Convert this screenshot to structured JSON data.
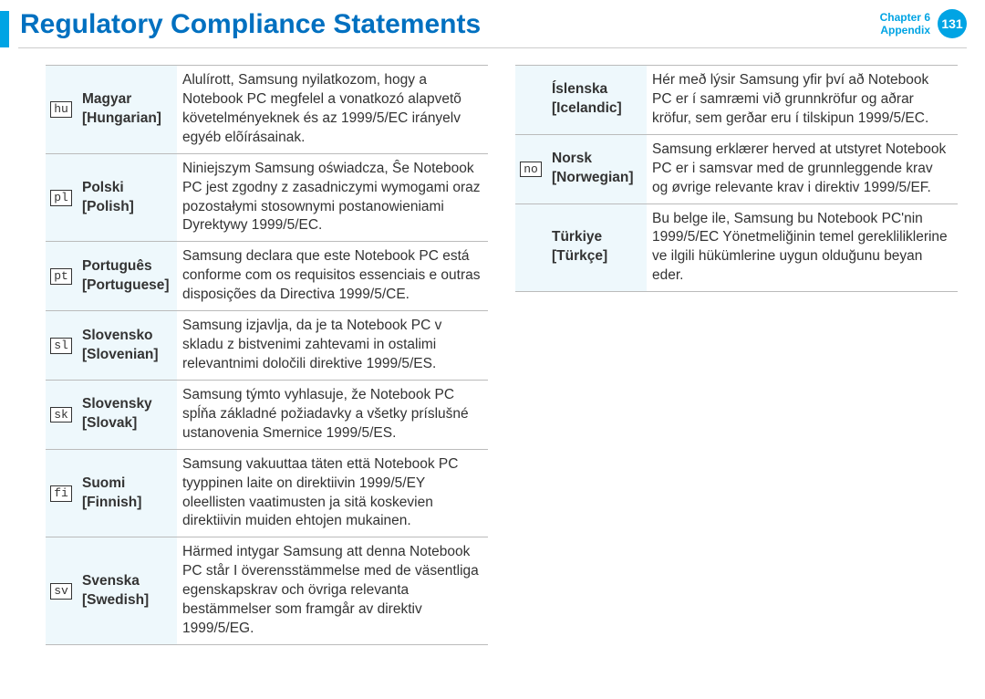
{
  "header": {
    "title": "Regulatory Compliance Statements",
    "chapter_line": "Chapter 6",
    "appendix_line": "Appendix",
    "page_number": "131"
  },
  "colors": {
    "accent": "#00a4e4",
    "title": "#0070c0",
    "lang_bg": "#eef8fc",
    "border": "#bbbbbb"
  },
  "left_rows": [
    {
      "code": "hu",
      "lang_native": "Magyar",
      "lang_en": "[Hungarian]",
      "statement": "Alulírott, Samsung nyilatkozom, hogy a Notebook PC megfelel a vonatkozó alapvetõ követelményeknek és az 1999/5/EC irányelv egyéb elõírásainak."
    },
    {
      "code": "pl",
      "lang_native": "Polski",
      "lang_en": "[Polish]",
      "statement": "Niniejszym Samsung oświadcza, Ŝe Notebook PC jest zgodny z zasadniczymi wymogami oraz pozostałymi stosownymi postanowieniami Dyrektywy 1999/5/EC."
    },
    {
      "code": "pt",
      "lang_native": "Português",
      "lang_en": "[Portuguese]",
      "statement": "Samsung declara que este Notebook PC está conforme com os requisitos essenciais e outras disposições da Directiva 1999/5/CE."
    },
    {
      "code": "sl",
      "lang_native": "Slovensko",
      "lang_en": "[Slovenian]",
      "statement": "Samsung izjavlja, da je ta Notebook PC v skladu z bistvenimi zahtevami in ostalimi relevantnimi določili direktive 1999/5/ES."
    },
    {
      "code": "sk",
      "lang_native": "Slovensky",
      "lang_en": "[Slovak]",
      "statement": "Samsung týmto vyhlasuje, že Notebook PC spĺňa základné požiadavky a všetky príslušné ustanovenia Smernice 1999/5/ES."
    },
    {
      "code": "fi",
      "lang_native": "Suomi",
      "lang_en": "[Finnish]",
      "statement": "Samsung vakuuttaa täten että Notebook PC tyyppinen laite on direktiivin 1999/5/EY oleellisten vaatimusten ja sitä koskevien direktiivin muiden ehtojen mukainen."
    },
    {
      "code": "sv",
      "lang_native": "Svenska",
      "lang_en": "[Swedish]",
      "statement": "Härmed intygar Samsung att denna Notebook PC står I överensstämmelse med de väsentliga egenskapskrav och övriga relevanta bestämmelser som framgår av direktiv 1999/5/EG."
    }
  ],
  "right_rows": [
    {
      "code": "",
      "lang_native": "Íslenska",
      "lang_en": "[Icelandic]",
      "statement": "Hér með lýsir Samsung yfir því að Notebook PC er í samræmi við grunnkröfur og aðrar kröfur, sem gerðar eru í tilskipun 1999/5/EC."
    },
    {
      "code": "no",
      "lang_native": "Norsk",
      "lang_en": "[Norwegian]",
      "statement": "Samsung erklærer herved at utstyret Notebook PC er i samsvar med de grunnleggende krav og øvrige relevante krav i direktiv 1999/5/EF."
    },
    {
      "code": "",
      "lang_native": "Türkiye",
      "lang_en": "[Türkçe]",
      "statement": "Bu belge ile, Samsung bu Notebook PC'nin 1999/5/EC Yönetmeliğinin temel gerekliliklerine ve ilgili hükümlerine uygun olduğunu beyan eder."
    }
  ]
}
